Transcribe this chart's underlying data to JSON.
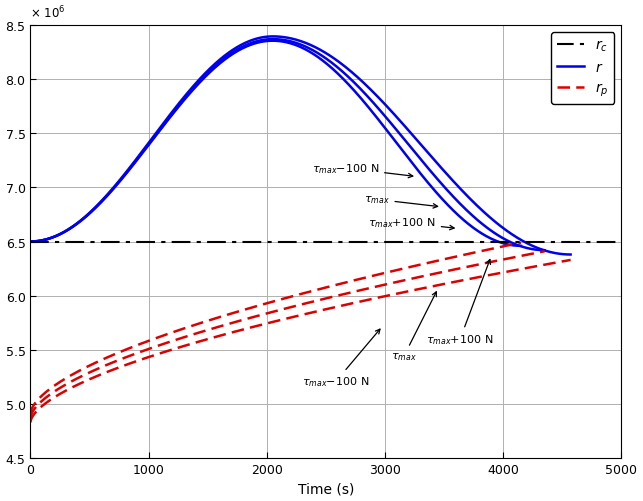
{
  "x_min": 0,
  "x_max": 4700,
  "y_min": 4.5,
  "y_max": 8.5,
  "xticks": [
    0,
    1000,
    2000,
    3000,
    4000,
    5000
  ],
  "yticks": [
    4.5,
    5.0,
    5.5,
    6.0,
    6.5,
    7.0,
    7.5,
    8.0,
    8.5
  ],
  "xlabel": "Time (s)",
  "blue_color": "#0000EE",
  "red_color": "#DD0000",
  "background_color": "#ffffff",
  "grid_color": "#b0b0b0",
  "rc": 6.5,
  "r_start": 6.5,
  "r_peak_time": 2050,
  "r_peak_nom": 8.37,
  "r_peak_minus": 8.395,
  "r_peak_plus": 8.355,
  "r_t_end_nom": 4350,
  "r_t_end_minus": 4570,
  "r_t_end_plus": 4150,
  "r_end_nom": 6.42,
  "r_end_minus": 6.38,
  "r_end_plus": 6.46,
  "rp_start_nom": 4.87,
  "rp_start_minus": 4.83,
  "rp_start_plus": 4.91,
  "rp_t_end_nom": 4350,
  "rp_t_end_minus": 4570,
  "rp_t_end_plus": 4150,
  "rp_end_nom": 6.41,
  "rp_end_minus": 6.33,
  "rp_end_plus": 6.49,
  "ann_fontsize": 8,
  "legend_fontsize": 10
}
